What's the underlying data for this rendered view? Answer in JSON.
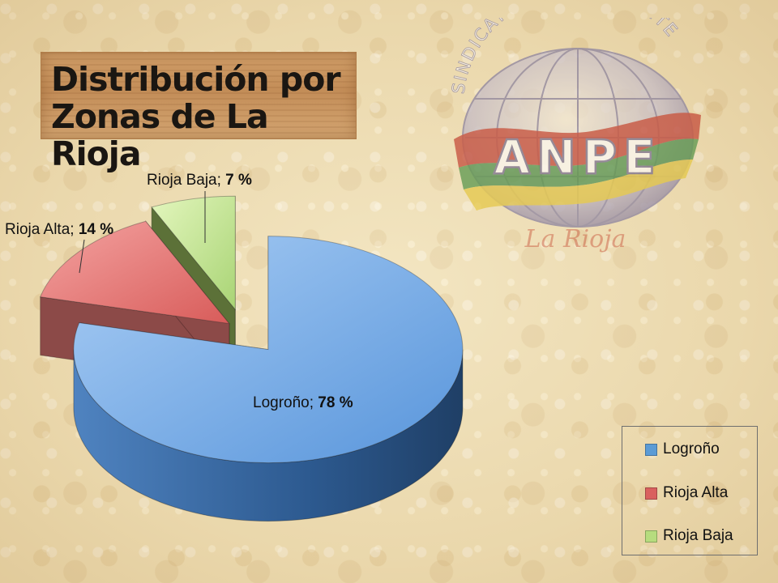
{
  "slide": {
    "title": "Distribución por\nZonas de La Rioja",
    "logo": {
      "arc_text": "SINDICATO INDEPENDIENTE",
      "brand": "ANPE",
      "script": "La Rioja"
    }
  },
  "chart_data": {
    "type": "pie",
    "style": "3d-exploded",
    "categories": [
      "Logroño",
      "Rioja Alta",
      "Rioja Baja"
    ],
    "values": [
      78,
      14,
      7
    ],
    "value_suffix": " %",
    "label_separator": "; ",
    "colors": [
      "#5b9bd5",
      "#d9605e",
      "#b6dc7e"
    ],
    "legend": {
      "position": "bottom-right",
      "entries": [
        "Logroño",
        "Rioja Alta",
        "Rioja Baja"
      ]
    }
  }
}
